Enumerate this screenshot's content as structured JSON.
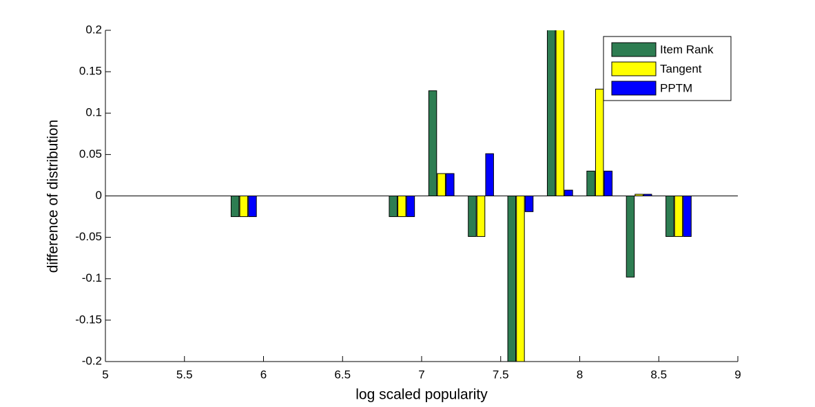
{
  "chart_data": {
    "type": "bar",
    "xlabel": "log scaled popularity",
    "ylabel": "difference of distribution",
    "x": [
      5.875,
      6.875,
      7.125,
      7.375,
      7.625,
      7.875,
      8.125,
      8.375,
      8.625
    ],
    "series": [
      {
        "name": "Item Rank",
        "color": "#2e7d52",
        "values": [
          -0.025,
          -0.025,
          0.127,
          -0.049,
          -0.22,
          0.22,
          0.03,
          -0.098,
          -0.049
        ]
      },
      {
        "name": "Tangent",
        "color": "#ffff00",
        "values": [
          -0.025,
          -0.025,
          0.027,
          -0.049,
          -0.22,
          0.22,
          0.129,
          0.002,
          -0.049
        ]
      },
      {
        "name": "PPTM",
        "color": "#0000ff",
        "values": [
          -0.025,
          -0.025,
          0.027,
          0.051,
          -0.019,
          0.007,
          0.03,
          0.002,
          -0.049
        ]
      }
    ],
    "xlim": [
      5,
      9
    ],
    "xticks": [
      5,
      5.5,
      6,
      6.5,
      7,
      7.5,
      8,
      8.5,
      9
    ],
    "ylim": [
      -0.2,
      0.2
    ],
    "yticks": [
      -0.2,
      -0.15,
      -0.1,
      -0.05,
      0,
      0.05,
      0.1,
      0.15,
      0.2
    ],
    "legend": "top-right",
    "grid": false
  }
}
